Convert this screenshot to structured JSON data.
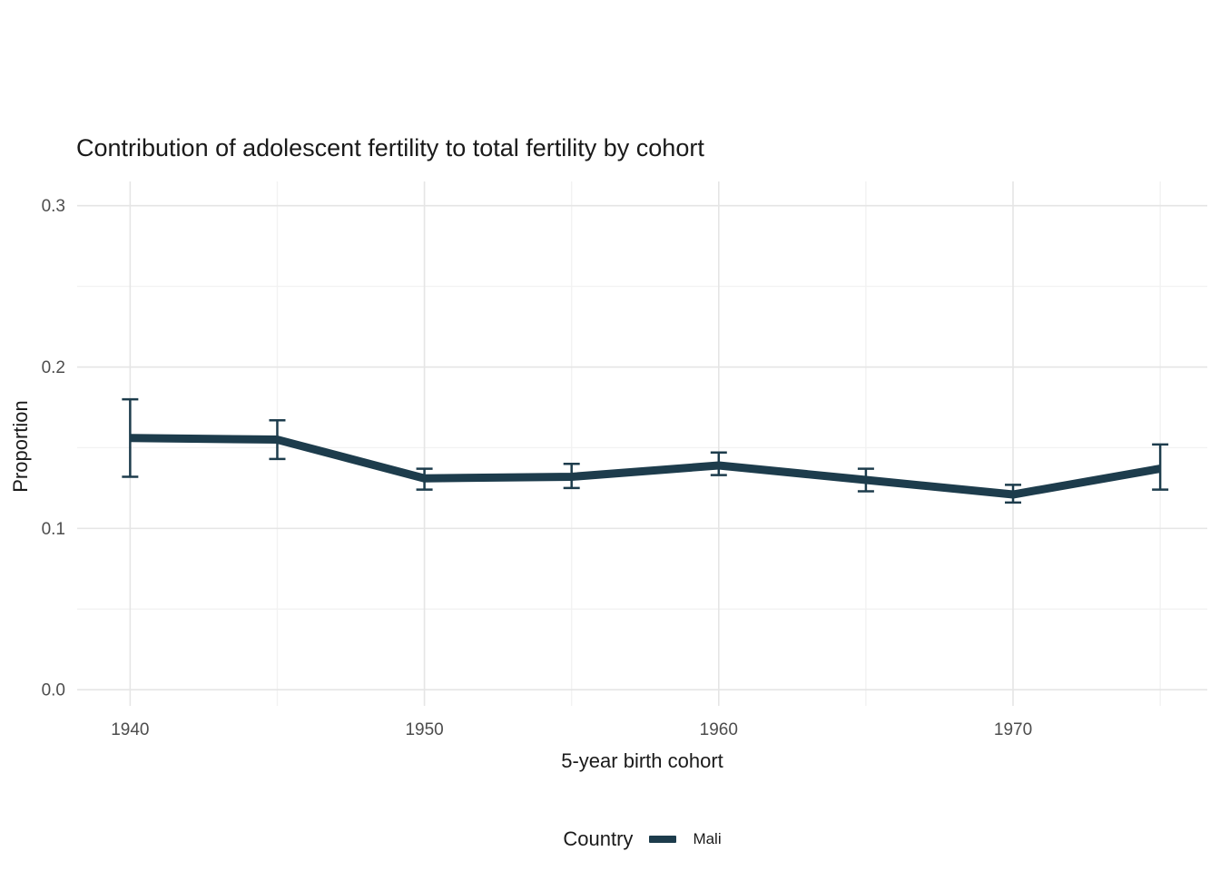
{
  "chart_data": {
    "type": "line",
    "title": "Contribution of adolescent fertility to total fertility by cohort",
    "xlabel": "5-year birth cohort",
    "ylabel": "Proportion",
    "legend_title": "Country",
    "legend_position": "bottom",
    "grid": true,
    "background": "#ffffff",
    "grid_major_color": "#e5e5e5",
    "grid_minor_color": "#f2f2f2",
    "tick_label_color": "#4d4d4d",
    "xlim": [
      1938.2,
      1976.6
    ],
    "ylim": [
      -0.01,
      0.315
    ],
    "x_ticks": [
      1940,
      1950,
      1960,
      1970
    ],
    "x_tick_labels": [
      "1940",
      "1950",
      "1960",
      "1970"
    ],
    "x_minor_ticks": [
      1945,
      1955,
      1965,
      1975
    ],
    "y_ticks": [
      0.0,
      0.1,
      0.2,
      0.3
    ],
    "y_tick_labels": [
      "0.0",
      "0.1",
      "0.2",
      "0.3"
    ],
    "y_minor_ticks": [
      0.05,
      0.15,
      0.25
    ],
    "series": [
      {
        "name": "Mali",
        "color": "#1d3c4c",
        "x": [
          1940,
          1945,
          1950,
          1955,
          1960,
          1965,
          1970,
          1975
        ],
        "y": [
          0.156,
          0.155,
          0.131,
          0.132,
          0.139,
          0.13,
          0.121,
          0.137
        ],
        "ymin": [
          0.132,
          0.143,
          0.124,
          0.125,
          0.133,
          0.123,
          0.116,
          0.124
        ],
        "ymax": [
          0.18,
          0.167,
          0.137,
          0.14,
          0.147,
          0.137,
          0.127,
          0.152
        ]
      }
    ]
  }
}
